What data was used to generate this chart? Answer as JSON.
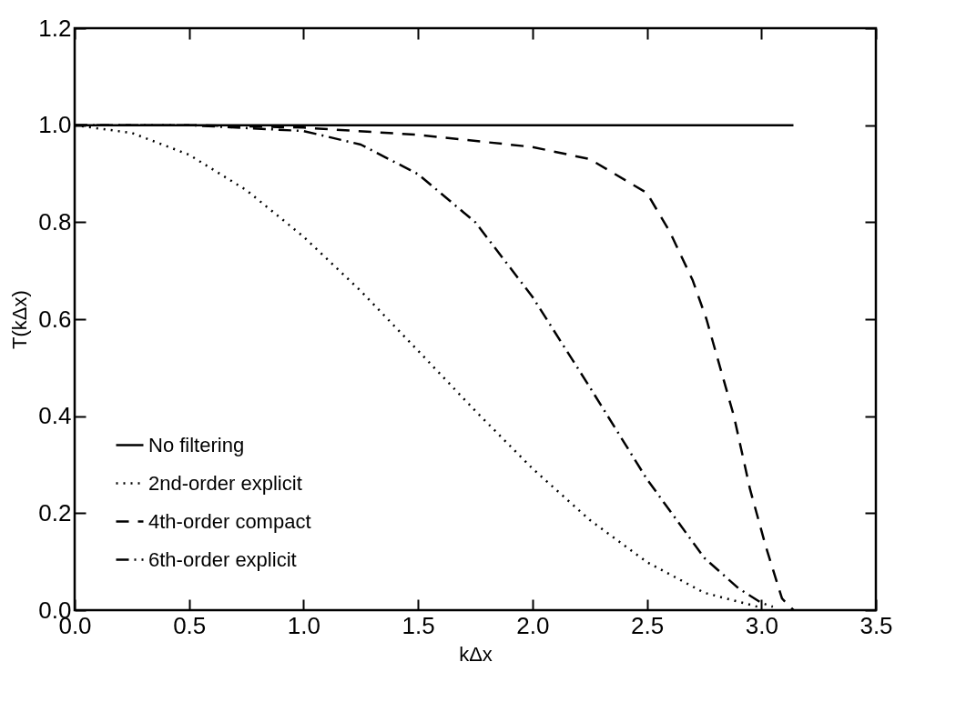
{
  "chart_data": {
    "type": "line",
    "xlabel": "kΔx",
    "ylabel": "T(kΔx)",
    "legend": "bottom left",
    "grid": false,
    "xlim": [
      0,
      3.5
    ],
    "ylim": [
      0,
      1.2
    ],
    "xticks": [
      {
        "value": 0,
        "label": "0.0"
      },
      0.5,
      {
        "value": 1,
        "label": "1.0"
      },
      1.5,
      {
        "value": 2,
        "label": "2.0"
      },
      2.5,
      {
        "value": 3,
        "label": "3.0"
      },
      3.5
    ],
    "yticks": [
      {
        "value": 0,
        "label": "0.0"
      },
      0.2,
      0.4,
      0.6,
      0.8,
      {
        "value": 1,
        "label": "1.0"
      },
      1.2
    ],
    "series": [
      {
        "name": "No filtering",
        "color": "#000000",
        "line_style": "solid",
        "x": [
          0,
          3.14
        ],
        "values": [
          1,
          1
        ]
      },
      {
        "name": "2nd-order explicit",
        "color": "#000000",
        "line_style": "dotted",
        "x": [
          0,
          0.25,
          0.5,
          0.75,
          1,
          1.25,
          1.5,
          1.75,
          2,
          2.25,
          2.5,
          2.75,
          3
        ],
        "values": [
          1,
          0.984,
          0.939,
          0.866,
          0.77,
          0.658,
          0.535,
          0.411,
          0.292,
          0.186,
          0.099,
          0.036,
          0.005
        ]
      },
      {
        "name": "4th-order compact",
        "color": "#000000",
        "line_style": "dashed",
        "x": [
          0,
          0.5,
          1,
          1.5,
          2,
          2.25,
          2.5,
          2.6,
          2.7,
          2.76,
          2.82,
          2.88,
          2.95,
          3.02,
          3.09,
          3.14
        ],
        "values": [
          1,
          1,
          0.995,
          0.98,
          0.955,
          0.93,
          0.86,
          0.78,
          0.68,
          0.6,
          0.5,
          0.4,
          0.25,
          0.13,
          0.024,
          0
        ]
      },
      {
        "name": "6th-order explicit",
        "color": "#000000",
        "line_style": "dashdot",
        "x": [
          0,
          0.5,
          1,
          1.25,
          1.5,
          1.75,
          2,
          2.25,
          2.5,
          2.75,
          2.9,
          3,
          3.05
        ],
        "values": [
          1,
          1,
          0.988,
          0.96,
          0.899,
          0.8,
          0.646,
          0.46,
          0.27,
          0.108,
          0.045,
          0.015,
          0.007
        ]
      }
    ]
  }
}
